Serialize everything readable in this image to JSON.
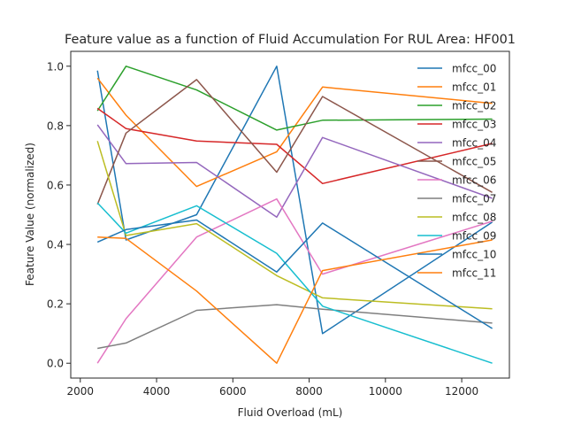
{
  "chart_data": {
    "type": "line",
    "title": "Feature value as a function of Fluid Accumulation For RUL Area: HF001",
    "xlabel": "Fluid Overload (mL)",
    "ylabel": "Feature Value (normalized)",
    "xlim": [
      1750,
      13250
    ],
    "ylim": [
      -0.05,
      1.05
    ],
    "xticks": [
      2000,
      4000,
      6000,
      8000,
      10000,
      12000
    ],
    "yticks": [
      0.0,
      0.2,
      0.4,
      0.6,
      0.8,
      1.0
    ],
    "xtick_labels": [
      "2000",
      "4000",
      "6000",
      "8000",
      "10000",
      "12000"
    ],
    "ytick_labels": [
      "0.0",
      "0.2",
      "0.4",
      "0.6",
      "0.8",
      "1.0"
    ],
    "legend_position": "upper right",
    "x": [
      2450,
      3200,
      5050,
      7150,
      8350,
      12800
    ],
    "series": [
      {
        "name": "mfcc_00",
        "color": "#1f77b4",
        "values": [
          0.985,
          0.415,
          0.5,
          1.0,
          0.1,
          0.475
        ]
      },
      {
        "name": "mfcc_01",
        "color": "#ff7f0e",
        "values": [
          0.96,
          0.835,
          0.595,
          0.712,
          0.93,
          0.875
        ]
      },
      {
        "name": "mfcc_02",
        "color": "#2ca02c",
        "values": [
          0.85,
          1.0,
          0.92,
          0.785,
          0.818,
          0.822
        ]
      },
      {
        "name": "mfcc_03",
        "color": "#d62728",
        "values": [
          0.858,
          0.79,
          0.748,
          0.737,
          0.605,
          0.74
        ]
      },
      {
        "name": "mfcc_04",
        "color": "#9467bd",
        "values": [
          0.803,
          0.672,
          0.676,
          0.492,
          0.76,
          0.555
        ]
      },
      {
        "name": "mfcc_05",
        "color": "#8c564b",
        "values": [
          0.535,
          0.775,
          0.955,
          0.643,
          0.898,
          0.575
        ]
      },
      {
        "name": "mfcc_06",
        "color": "#e377c2",
        "values": [
          0.0,
          0.15,
          0.425,
          0.553,
          0.3,
          0.478
        ]
      },
      {
        "name": "mfcc_07",
        "color": "#7f7f7f",
        "values": [
          0.05,
          0.068,
          0.178,
          0.197,
          0.182,
          0.135
        ]
      },
      {
        "name": "mfcc_08",
        "color": "#bcbd22",
        "values": [
          0.748,
          0.43,
          0.47,
          0.295,
          0.22,
          0.183
        ]
      },
      {
        "name": "mfcc_09",
        "color": "#17becf",
        "values": [
          0.54,
          0.438,
          0.53,
          0.37,
          0.192,
          0.0
        ]
      },
      {
        "name": "mfcc_10",
        "color": "#1f77b4",
        "values": [
          0.408,
          0.45,
          0.482,
          0.307,
          0.472,
          0.117
        ]
      },
      {
        "name": "mfcc_11",
        "color": "#ff7f0e",
        "values": [
          0.425,
          0.42,
          0.243,
          0.0,
          0.312,
          0.415
        ]
      }
    ]
  }
}
